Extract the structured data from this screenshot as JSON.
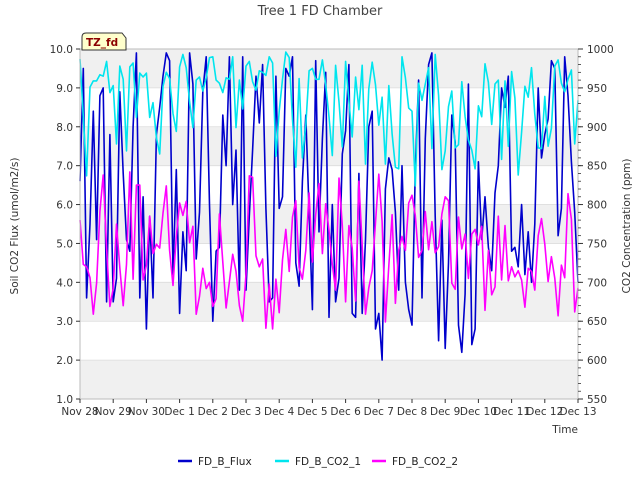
{
  "chart_data": {
    "type": "line",
    "title": "Tree 1 FD Chamber",
    "xlabel": "Time",
    "ylabel": "Soil CO2 Flux (umol/m2/s)",
    "y2label": "CO2 Concentration (ppm)",
    "badge": "TZ_fd",
    "x_days_range": [
      0,
      15
    ],
    "x_tick_labels": [
      "Nov 28",
      "Nov 29",
      "Nov 30",
      "Dec 1",
      "Dec 2",
      "Dec 3",
      "Dec 4",
      "Dec 5",
      "Dec 6",
      "Dec 7",
      "Dec 8",
      "Dec 9",
      "Dec 10",
      "Dec 11",
      "Dec 12",
      "Dec 13"
    ],
    "ylim": [
      1.0,
      10.0
    ],
    "y_ticks": [
      "1.0",
      "2.0",
      "3.0",
      "4.0",
      "5.0",
      "6.0",
      "7.0",
      "8.0",
      "9.0",
      "10.0"
    ],
    "y2lim": [
      550,
      1000
    ],
    "y2_ticks": [
      "550",
      "600",
      "650",
      "700",
      "750",
      "800",
      "850",
      "900",
      "950",
      "1000"
    ],
    "grid": "horizontal bands",
    "legend_position": "bottom",
    "series": [
      {
        "name": "FD_B_Flux",
        "axis": "left",
        "color": "#0000cc",
        "x": [
          0.0,
          0.1,
          0.2,
          0.3,
          0.4,
          0.5,
          0.6,
          0.7,
          0.8,
          0.9,
          1.0,
          1.1,
          1.2,
          1.3,
          1.4,
          1.5,
          1.6,
          1.7,
          1.8,
          1.9,
          2.0,
          2.1,
          2.2,
          2.3,
          2.4,
          2.5,
          2.6,
          2.7,
          2.8,
          2.9,
          3.0,
          3.1,
          3.2,
          3.3,
          3.4,
          3.5,
          3.6,
          3.7,
          3.8,
          3.9,
          4.0,
          4.1,
          4.2,
          4.3,
          4.4,
          4.5,
          4.6,
          4.7,
          4.8,
          4.9,
          5.0,
          5.1,
          5.2,
          5.3,
          5.4,
          5.5,
          5.6,
          5.7,
          5.8,
          5.9,
          6.0,
          6.1,
          6.2,
          6.3,
          6.4,
          6.5,
          6.6,
          6.7,
          6.8,
          6.9,
          7.0,
          7.1,
          7.2,
          7.3,
          7.4,
          7.5,
          7.6,
          7.7,
          7.8,
          7.9,
          8.0,
          8.1,
          8.2,
          8.3,
          8.4,
          8.5,
          8.6,
          8.7,
          8.8,
          8.9,
          9.0,
          9.1,
          9.2,
          9.3,
          9.4,
          9.5,
          9.6,
          9.7,
          9.8,
          9.9,
          10.0,
          10.1,
          10.2,
          10.3,
          10.4,
          10.5,
          10.6,
          10.7,
          10.8,
          10.9,
          11.0,
          11.1,
          11.2,
          11.3,
          11.4,
          11.5,
          11.6,
          11.7,
          11.8,
          11.9,
          12.0,
          12.1,
          12.2,
          12.3,
          12.4,
          12.5,
          12.6,
          12.7,
          12.8,
          12.9,
          13.0,
          13.1,
          13.2,
          13.3,
          13.4,
          13.5,
          13.6,
          13.7,
          13.8,
          13.9,
          14.0,
          14.1,
          14.2,
          14.3,
          14.4,
          14.5,
          14.6,
          14.7,
          14.8,
          14.9,
          15.0
        ],
        "values": [
          6.6,
          9.5,
          3.6,
          5.5,
          8.4,
          5.1,
          8.8,
          9.0,
          3.5,
          7.8,
          3.5,
          4.1,
          8.9,
          6.8,
          5.1,
          4.8,
          8.0,
          9.9,
          3.6,
          6.2,
          2.8,
          5.7,
          3.6,
          7.8,
          8.5,
          9.3,
          9.9,
          9.7,
          4.2,
          6.9,
          3.2,
          5.3,
          4.3,
          9.9,
          9.1,
          4.6,
          5.8,
          8.9,
          9.8,
          6.0,
          3.0,
          4.8,
          4.9,
          8.3,
          7.0,
          9.8,
          6.0,
          7.4,
          3.8,
          9.8,
          3.8,
          5.7,
          7.4,
          9.3,
          8.1,
          9.6,
          5.9,
          3.5,
          3.6,
          9.3,
          5.9,
          6.2,
          9.5,
          9.3,
          9.8,
          4.5,
          3.9,
          6.6,
          8.3,
          5.8,
          3.3,
          9.7,
          5.3,
          7.7,
          9.4,
          3.1,
          6.0,
          3.5,
          4.1,
          7.3,
          7.9,
          9.6,
          3.2,
          3.1,
          6.8,
          3.2,
          5.1,
          8.0,
          8.4,
          2.8,
          3.2,
          2.0,
          6.4,
          7.2,
          6.9,
          5.8,
          3.8,
          7.0,
          4.0,
          3.3,
          2.9,
          6.9,
          9.2,
          3.6,
          7.7,
          9.6,
          9.9,
          5.7,
          2.5,
          5.6,
          2.3,
          4.5,
          8.3,
          7.6,
          2.9,
          2.2,
          3.7,
          9.1,
          2.4,
          2.8,
          7.1,
          5.1,
          6.2,
          4.9,
          4.3,
          6.3,
          7.0,
          9.0,
          8.5,
          9.3,
          4.8,
          4.9,
          4.4,
          6.0,
          4.2,
          5.3,
          4.0,
          5.5,
          9.0,
          7.2,
          7.8,
          8.2,
          9.7,
          9.5,
          5.2,
          5.9,
          9.8,
          8.8,
          7.1,
          5.8,
          4.0
        ]
      },
      {
        "name": "FD_B_CO2_1",
        "axis": "right",
        "color": "#00e5ee",
        "x": [
          0.0,
          0.1,
          0.2,
          0.3,
          0.4,
          0.5,
          0.6,
          0.7,
          0.8,
          0.9,
          1.0,
          1.1,
          1.2,
          1.3,
          1.4,
          1.5,
          1.6,
          1.7,
          1.8,
          1.9,
          2.0,
          2.1,
          2.2,
          2.3,
          2.4,
          2.5,
          2.6,
          2.7,
          2.8,
          2.9,
          3.0,
          3.1,
          3.2,
          3.3,
          3.4,
          3.5,
          3.6,
          3.7,
          3.8,
          3.9,
          4.0,
          4.1,
          4.2,
          4.3,
          4.4,
          4.5,
          4.6,
          4.7,
          4.8,
          4.9,
          5.0,
          5.1,
          5.2,
          5.3,
          5.4,
          5.5,
          5.6,
          5.7,
          5.8,
          5.9,
          6.0,
          6.1,
          6.2,
          6.3,
          6.4,
          6.5,
          6.6,
          6.7,
          6.8,
          6.9,
          7.0,
          7.1,
          7.2,
          7.3,
          7.4,
          7.5,
          7.6,
          7.7,
          7.8,
          7.9,
          8.0,
          8.1,
          8.2,
          8.3,
          8.4,
          8.5,
          8.6,
          8.7,
          8.8,
          8.9,
          9.0,
          9.1,
          9.2,
          9.3,
          9.4,
          9.5,
          9.6,
          9.7,
          9.8,
          9.9,
          10.0,
          10.1,
          10.2,
          10.3,
          10.4,
          10.5,
          10.6,
          10.7,
          10.8,
          10.9,
          11.0,
          11.1,
          11.2,
          11.3,
          11.4,
          11.5,
          11.6,
          11.7,
          11.8,
          11.9,
          12.0,
          12.1,
          12.2,
          12.3,
          12.4,
          12.5,
          12.6,
          12.7,
          12.8,
          12.9,
          13.0,
          13.1,
          13.2,
          13.3,
          13.4,
          13.5,
          13.6,
          13.7,
          13.8,
          13.9,
          14.0,
          14.1,
          14.2,
          14.3,
          14.4,
          14.5,
          14.6,
          14.7,
          14.8,
          14.9,
          15.0
        ],
        "values": [
          987,
          913,
          837,
          951,
          959,
          959,
          967,
          965,
          984,
          944,
          953,
          878,
          978,
          961,
          869,
          977,
          982,
          912,
          969,
          964,
          969,
          912,
          931,
          886,
          865,
          952,
          970,
          962,
          917,
          894,
          977,
          993,
          976,
          932,
          899,
          960,
          964,
          946,
          963,
          989,
          990,
          960,
          956,
          944,
          963,
          961,
          990,
          899,
          960,
          923,
          978,
          984,
          958,
          947,
          972,
          970,
          966,
          990,
          982,
          862,
          920,
          961,
          996,
          989,
          909,
          848,
          962,
          860,
          902,
          972,
          975,
          961,
          961,
          986,
          954,
          913,
          863,
          979,
          932,
          874,
          984,
          933,
          887,
          964,
          922,
          979,
          852,
          949,
          983,
          954,
          902,
          938,
          852,
          953,
          891,
          848,
          846,
          990,
          963,
          924,
          920,
          824,
          956,
          934,
          955,
          976,
          872,
          993,
          940,
          845,
          869,
          926,
          946,
          873,
          877,
          958,
          913,
          883,
          870,
          846,
          927,
          913,
          981,
          957,
          903,
          955,
          960,
          858,
          959,
          875,
          971,
          937,
          838,
          893,
          952,
          938,
          976,
          916,
          873,
          872,
          939,
          875,
          898,
          978,
          986,
          956,
          945,
          961,
          973,
          878,
          934
        ]
      },
      {
        "name": "FD_B_CO2_2",
        "axis": "right",
        "color": "#ff00ff",
        "x": [
          0.0,
          0.1,
          0.2,
          0.3,
          0.4,
          0.5,
          0.6,
          0.7,
          0.8,
          0.9,
          1.0,
          1.1,
          1.2,
          1.3,
          1.4,
          1.5,
          1.6,
          1.7,
          1.8,
          1.9,
          2.0,
          2.1,
          2.2,
          2.3,
          2.4,
          2.5,
          2.6,
          2.7,
          2.8,
          2.9,
          3.0,
          3.1,
          3.2,
          3.3,
          3.4,
          3.5,
          3.6,
          3.7,
          3.8,
          3.9,
          4.0,
          4.1,
          4.2,
          4.3,
          4.4,
          4.5,
          4.6,
          4.7,
          4.8,
          4.9,
          5.0,
          5.1,
          5.2,
          5.3,
          5.4,
          5.5,
          5.6,
          5.7,
          5.8,
          5.9,
          6.0,
          6.1,
          6.2,
          6.3,
          6.4,
          6.5,
          6.6,
          6.7,
          6.8,
          6.9,
          7.0,
          7.1,
          7.2,
          7.3,
          7.4,
          7.5,
          7.6,
          7.7,
          7.8,
          7.9,
          8.0,
          8.1,
          8.2,
          8.3,
          8.4,
          8.5,
          8.6,
          8.7,
          8.8,
          8.9,
          9.0,
          9.1,
          9.2,
          9.3,
          9.4,
          9.5,
          9.6,
          9.7,
          9.8,
          9.9,
          10.0,
          10.1,
          10.2,
          10.3,
          10.4,
          10.5,
          10.6,
          10.7,
          10.8,
          10.9,
          11.0,
          11.1,
          11.2,
          11.3,
          11.4,
          11.5,
          11.6,
          11.7,
          11.8,
          11.9,
          12.0,
          12.1,
          12.2,
          12.3,
          12.4,
          12.5,
          12.6,
          12.7,
          12.8,
          12.9,
          13.0,
          13.1,
          13.2,
          13.3,
          13.4,
          13.5,
          13.6,
          13.7,
          13.8,
          13.9,
          14.0,
          14.1,
          14.2,
          14.3,
          14.4,
          14.5,
          14.6,
          14.7,
          14.8,
          14.9,
          15.0
        ],
        "values": [
          780,
          723,
          720,
          706,
          659,
          699,
          791,
          838,
          743,
          669,
          692,
          775,
          719,
          670,
          723,
          842,
          704,
          825,
          825,
          703,
          722,
          785,
          737,
          749,
          744,
          789,
          824,
          741,
          696,
          759,
          802,
          786,
          804,
          751,
          772,
          659,
          682,
          718,
          692,
          700,
          669,
          679,
          788,
          726,
          667,
          701,
          736,
          714,
          670,
          650,
          711,
          837,
          835,
          734,
          720,
          730,
          641,
          698,
          640,
          704,
          661,
          729,
          768,
          714,
          784,
          805,
          719,
          704,
          741,
          815,
          726,
          787,
          827,
          737,
          801,
          767,
          723,
          690,
          834,
          773,
          675,
          773,
          744,
          676,
          830,
          747,
          659,
          693,
          715,
          777,
          839,
          778,
          649,
          721,
          787,
          673,
          741,
          759,
          741,
          802,
          812,
          786,
          732,
          741,
          791,
          742,
          778,
          738,
          746,
          788,
          810,
          805,
          699,
          691,
          784,
          743,
          762,
          705,
          762,
          768,
          748,
          772,
          664,
          741,
          684,
          694,
          785,
          703,
          773,
          702,
          720,
          707,
          715,
          703,
          668,
          718,
          714,
          690,
          760,
          782,
          749,
          701,
          733,
          705,
          657,
          722,
          706,
          814,
          781,
          662,
          693
        ]
      }
    ]
  }
}
